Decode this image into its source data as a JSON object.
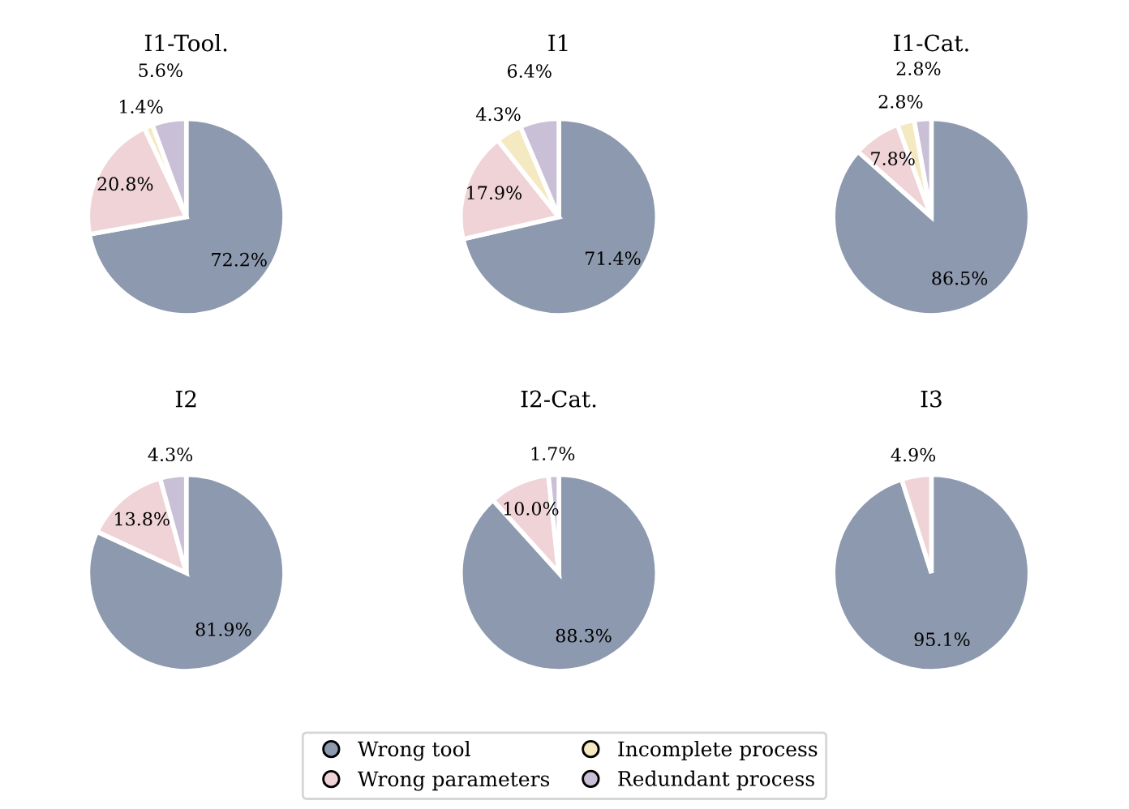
{
  "chart_data": [
    {
      "type": "pie",
      "title": "I1-Tool.",
      "categories": [
        "Wrong tool",
        "Wrong parameters",
        "Incomplete process",
        "Redundant process"
      ],
      "values": [
        72.2,
        20.8,
        1.4,
        5.6
      ],
      "value_labels": [
        "72.2%",
        "20.8%",
        "1.4%",
        "5.6%"
      ],
      "colors": [
        "#8d99ae",
        "#efd3d7",
        "#f4e9c1",
        "#c9bfd6"
      ],
      "legend": "bottom"
    },
    {
      "type": "pie",
      "title": "I1",
      "categories": [
        null,
        null,
        null,
        null
      ],
      "values": [
        71.4,
        17.9,
        4.3,
        6.4
      ],
      "value_labels": [
        "71.4%",
        "17.9%",
        "4.3%",
        "6.4%"
      ],
      "colors": [
        "#8d99ae",
        "#efd3d7",
        "#f4e9c1",
        "#c9bfd6"
      ]
    },
    {
      "type": "pie",
      "title": "I1-Cat.",
      "categories": [
        null,
        null,
        null,
        null
      ],
      "values": [
        86.5,
        7.8,
        2.8,
        2.8
      ],
      "value_labels": [
        "86.5%",
        "7.8%",
        "2.8%",
        "2.8%"
      ],
      "colors": [
        "#8d99ae",
        "#efd3d7",
        "#f4e9c1",
        "#c9bfd6"
      ]
    },
    {
      "type": "pie",
      "title": "I2",
      "categories": [
        null,
        null,
        null
      ],
      "values": [
        81.9,
        13.8,
        4.3
      ],
      "value_labels": [
        "81.9%",
        "13.8%",
        "4.3%"
      ],
      "colors": [
        "#8d99ae",
        "#efd3d7",
        "#c9bfd6"
      ]
    },
    {
      "type": "pie",
      "title": "I2-Cat.",
      "categories": [
        null,
        null,
        null
      ],
      "values": [
        88.3,
        10.0,
        1.7
      ],
      "value_labels": [
        "88.3%",
        "10.0%",
        "1.7%"
      ],
      "colors": [
        "#8d99ae",
        "#efd3d7",
        "#c9bfd6"
      ]
    },
    {
      "type": "pie",
      "title": "I3",
      "categories": [
        null,
        null
      ],
      "values": [
        95.1,
        4.9
      ],
      "value_labels": [
        "95.1%",
        "4.9%"
      ],
      "colors": [
        "#8d99ae",
        "#efd3d7"
      ]
    }
  ]
}
